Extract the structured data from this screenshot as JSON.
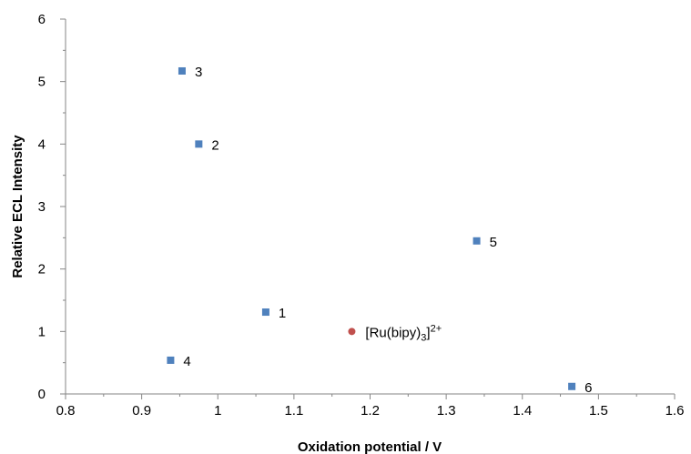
{
  "chart_data": {
    "type": "scatter",
    "title": "",
    "xlabel": "Oxidation potential / V",
    "ylabel": "Relative ECL Intensity",
    "xlim": [
      0.8,
      1.6
    ],
    "ylim": [
      0,
      6
    ],
    "x_ticks": [
      "0.8",
      "0.9",
      "1",
      "1.1",
      "1.2",
      "1.3",
      "1.4",
      "1.5",
      "1.6"
    ],
    "y_ticks": [
      "0",
      "1",
      "2",
      "3",
      "4",
      "5",
      "6"
    ],
    "grid": false,
    "legend": "none",
    "series": [
      {
        "marker": "square",
        "color": "#4F81BD",
        "points": [
          {
            "label": "1",
            "x": 1.063,
            "y": 1.31
          },
          {
            "label": "2",
            "x": 0.975,
            "y": 4.0
          },
          {
            "label": "3",
            "x": 0.953,
            "y": 5.17
          },
          {
            "label": "4",
            "x": 0.938,
            "y": 0.54
          },
          {
            "label": "5",
            "x": 1.34,
            "y": 2.45
          },
          {
            "label": "6",
            "x": 1.465,
            "y": 0.12
          }
        ]
      },
      {
        "marker": "circle",
        "color": "#C0504D",
        "points": [
          {
            "label_base": "[Ru(bipy)",
            "label_sub": "3",
            "label_close": "]",
            "label_sup": "2+",
            "x": 1.176,
            "y": 1.0
          }
        ]
      }
    ]
  }
}
